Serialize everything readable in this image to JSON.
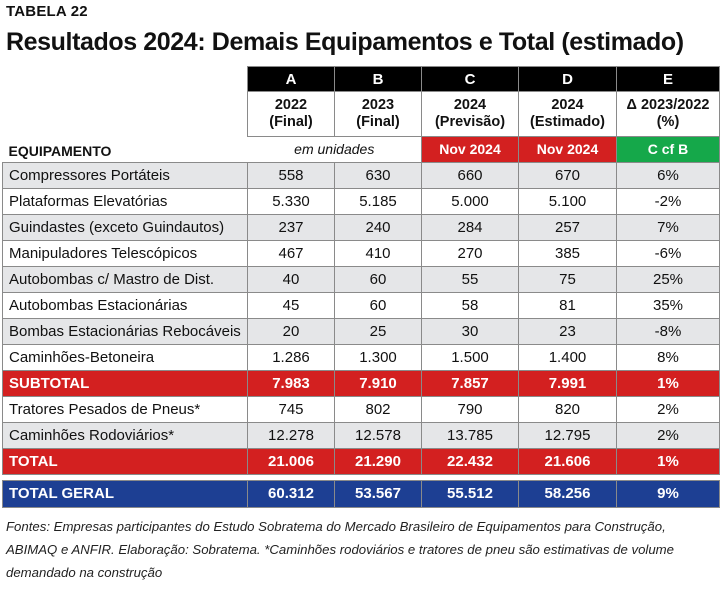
{
  "header": {
    "kicker": "TABELA 22",
    "title": "Resultados 2024: Demais Equipamentos e Total (estimado)"
  },
  "columns": [
    {
      "letter": "A",
      "year": "2022",
      "sub": "(Final)"
    },
    {
      "letter": "B",
      "year": "2023",
      "sub": "(Final)"
    },
    {
      "letter": "C",
      "year": "2024",
      "sub": "(Previsão)"
    },
    {
      "letter": "D",
      "year": "2024",
      "sub": "(Estimado)"
    },
    {
      "letter": "E",
      "year": "Δ 2023/2022",
      "sub": "(%)"
    }
  ],
  "units_row": {
    "label": "EQUIPAMENTO",
    "units": "em unidades",
    "c_tag": "Nov 2024",
    "d_tag": "Nov 2024",
    "e_tag": "C cf B"
  },
  "rows": [
    {
      "label": "Compressores Portáteis",
      "a": "558",
      "b": "630",
      "c": "660",
      "d": "670",
      "e": "6%"
    },
    {
      "label": "Plataformas Elevatórias",
      "a": "5.330",
      "b": "5.185",
      "c": "5.000",
      "d": "5.100",
      "e": "-2%"
    },
    {
      "label": "Guindastes (exceto Guindautos)",
      "a": "237",
      "b": "240",
      "c": "284",
      "d": "257",
      "e": "7%"
    },
    {
      "label": "Manipuladores Telescópicos",
      "a": "467",
      "b": "410",
      "c": "270",
      "d": "385",
      "e": "-6%"
    },
    {
      "label": "Autobombas c/ Mastro de Dist.",
      "a": "40",
      "b": "60",
      "c": "55",
      "d": "75",
      "e": "25%"
    },
    {
      "label": "Autobombas Estacionárias",
      "a": "45",
      "b": "60",
      "c": "58",
      "d": "81",
      "e": "35%"
    },
    {
      "label": "Bombas Estacionárias Rebocáveis",
      "a": "20",
      "b": "25",
      "c": "30",
      "d": "23",
      "e": "-8%"
    },
    {
      "label": "Caminhões-Betoneira",
      "a": "1.286",
      "b": "1.300",
      "c": "1.500",
      "d": "1.400",
      "e": "8%"
    }
  ],
  "subtotal": {
    "label": "SUBTOTAL",
    "a": "7.983",
    "b": "7.910",
    "c": "7.857",
    "d": "7.991",
    "e": "1%"
  },
  "rows2": [
    {
      "label": "Tratores Pesados de Pneus*",
      "a": "745",
      "b": "802",
      "c": "790",
      "d": "820",
      "e": "2%"
    },
    {
      "label": "Caminhões Rodoviários*",
      "a": "12.278",
      "b": "12.578",
      "c": "13.785",
      "d": "12.795",
      "e": "2%"
    }
  ],
  "total": {
    "label": "TOTAL",
    "a": "21.006",
    "b": "21.290",
    "c": "22.432",
    "d": "21.606",
    "e": "1%"
  },
  "total_geral": {
    "label": "TOTAL GERAL",
    "a": "60.312",
    "b": "53.567",
    "c": "55.512",
    "d": "58.256",
    "e": "9%"
  },
  "footnote": "Fontes: Empresas participantes do Estudo Sobratema do Mercado Brasileiro de Equipamentos para Construção, ABIMAQ e ANFIR. Elaboração: Sobratema. *Caminhões rodoviários e tratores de pneu são estimativas de volume demandado na construção",
  "colors": {
    "red": "#d32020",
    "green": "#15a84a",
    "blue": "#1d3f93",
    "shade": "#e5e6e8"
  }
}
